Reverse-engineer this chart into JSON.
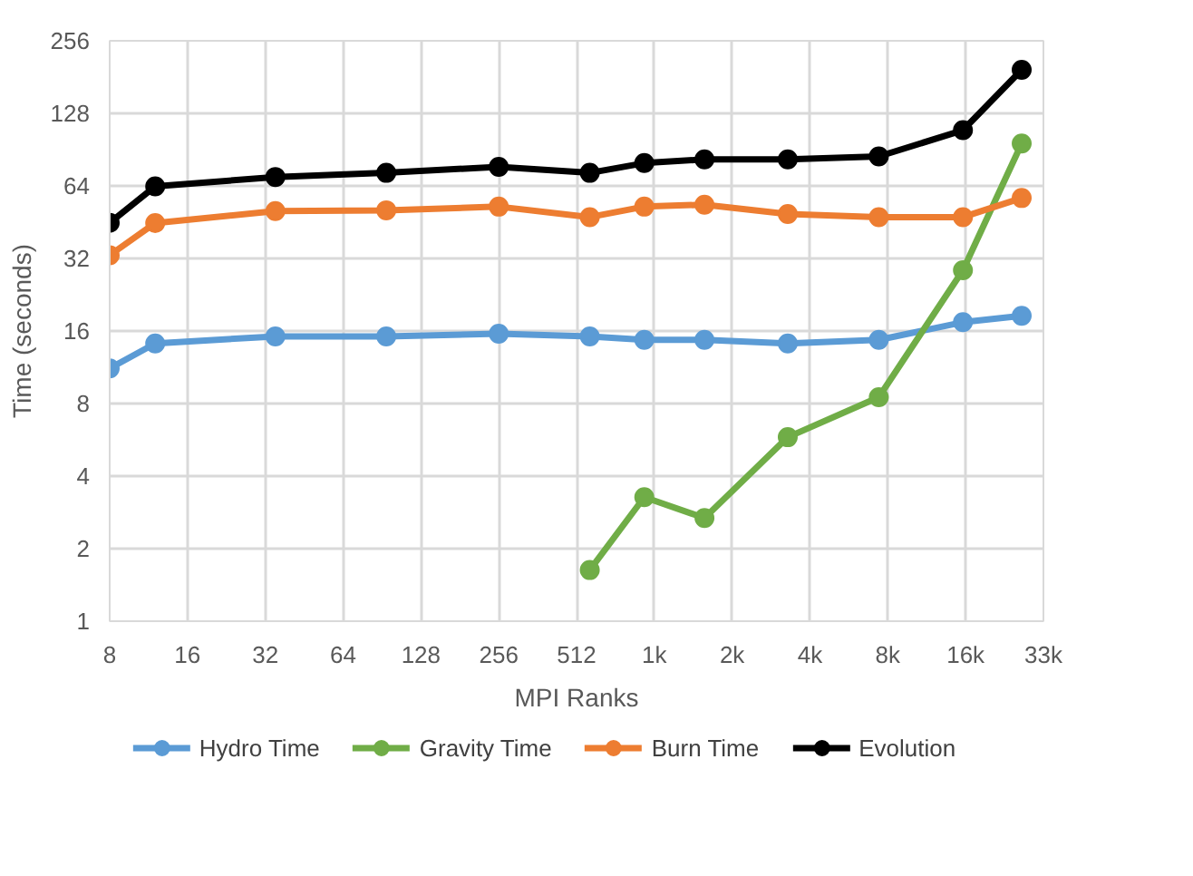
{
  "chart_data": {
    "type": "line",
    "xlabel": "MPI Ranks",
    "ylabel": "Time (seconds)",
    "x": [
      8,
      12,
      35,
      94,
      256,
      576,
      936,
      1600,
      3360,
      7560,
      16000,
      27000
    ],
    "series": [
      {
        "name": "Hydro Time",
        "color": "#5b9bd5",
        "values": [
          11.2,
          14.2,
          15.2,
          15.2,
          15.6,
          15.2,
          14.7,
          14.7,
          14.2,
          14.7,
          17.4,
          18.5
        ]
      },
      {
        "name": "Gravity Time",
        "color": "#70ad47",
        "values": [
          null,
          null,
          null,
          null,
          null,
          1.63,
          3.27,
          2.68,
          5.8,
          8.5,
          28.6,
          96
        ]
      },
      {
        "name": "Burn Time",
        "color": "#ed7d31",
        "values": [
          33,
          44.9,
          50.3,
          50.7,
          52.5,
          47.5,
          52.5,
          53.5,
          48.9,
          47.5,
          47.5,
          57
        ]
      },
      {
        "name": "Evolution",
        "color": "#000000",
        "values": [
          45,
          63.7,
          69.7,
          72.5,
          76.8,
          72.5,
          79.6,
          82.5,
          82.5,
          84.8,
          109,
          194
        ]
      }
    ],
    "log": "xy",
    "xlim": [
      8,
      32768
    ],
    "ylim": [
      1,
      256
    ],
    "xticks": [
      8,
      16,
      32,
      64,
      128,
      256,
      512,
      {
        "value": 1024,
        "label": "1k"
      },
      {
        "value": 2048,
        "label": "2k"
      },
      {
        "value": 4096,
        "label": "4k"
      },
      {
        "value": 8192,
        "label": "8k"
      },
      {
        "value": 16384,
        "label": "16k"
      },
      {
        "value": 32768,
        "label": "33k"
      }
    ],
    "yticks": [
      1,
      2,
      4,
      8,
      16,
      32,
      64,
      128,
      256
    ],
    "grid": true,
    "legend": "bottom",
    "marker": "circle",
    "line_style": "solid"
  }
}
